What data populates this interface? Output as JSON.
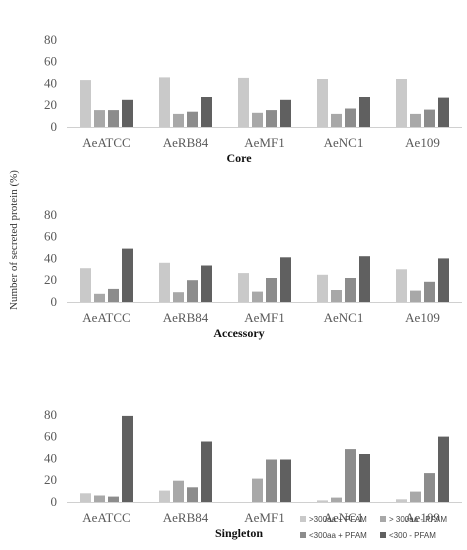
{
  "chart_data": {
    "type": "bar",
    "ylabel": "Number of secreted protein (%)",
    "categories": [
      "AeATCC",
      "AeRB84",
      "AeMF1",
      "AeNC1",
      "Ae109"
    ],
    "series_names": [
      ">300aa + PFAM",
      "> 300aa - PFAM",
      "<300aa + PFAM",
      "<300 - PFAM"
    ],
    "colors": [
      "#c9c9c9",
      "#a8a8a8",
      "#8c8c8c",
      "#606060"
    ],
    "ylim": [
      0,
      80
    ],
    "yticks": [
      0,
      20,
      40,
      60,
      80
    ],
    "grid": false,
    "legend_position": "bottom-right",
    "panels": [
      {
        "title": "Core",
        "series": [
          {
            "name": ">300aa + PFAM",
            "values": [
              43,
              45.5,
              45,
              44,
              44
            ]
          },
          {
            "name": "> 300aa - PFAM",
            "values": [
              15.5,
              12,
              13,
              12,
              12
            ]
          },
          {
            "name": "<300aa + PFAM",
            "values": [
              15.5,
              14,
              15.5,
              17,
              16
            ]
          },
          {
            "name": "<300 - PFAM",
            "values": [
              25,
              27.5,
              25,
              27.5,
              27
            ]
          }
        ]
      },
      {
        "title": "Accessory",
        "series": [
          {
            "name": ">300aa + PFAM",
            "values": [
              31,
              36,
              26.5,
              25,
              30
            ]
          },
          {
            "name": "> 300aa - PFAM",
            "values": [
              7.5,
              9,
              9.5,
              11,
              10.5
            ]
          },
          {
            "name": "<300aa + PFAM",
            "values": [
              12,
              20,
              22,
              22,
              18.5
            ]
          },
          {
            "name": "<300 - PFAM",
            "values": [
              49,
              33.5,
              41,
              42,
              40
            ]
          }
        ]
      },
      {
        "title": "Singleton",
        "series": [
          {
            "name": ">300aa + PFAM",
            "values": [
              8,
              10.5,
              0,
              1.5,
              2.5
            ]
          },
          {
            "name": "> 300aa - PFAM",
            "values": [
              6,
              19.5,
              21.5,
              4,
              9.5
            ]
          },
          {
            "name": "<300aa + PFAM",
            "values": [
              5,
              13.5,
              39,
              48.5,
              26.5
            ]
          },
          {
            "name": "<300 - PFAM",
            "values": [
              79,
              55.5,
              39,
              44,
              60
            ]
          }
        ]
      }
    ]
  }
}
